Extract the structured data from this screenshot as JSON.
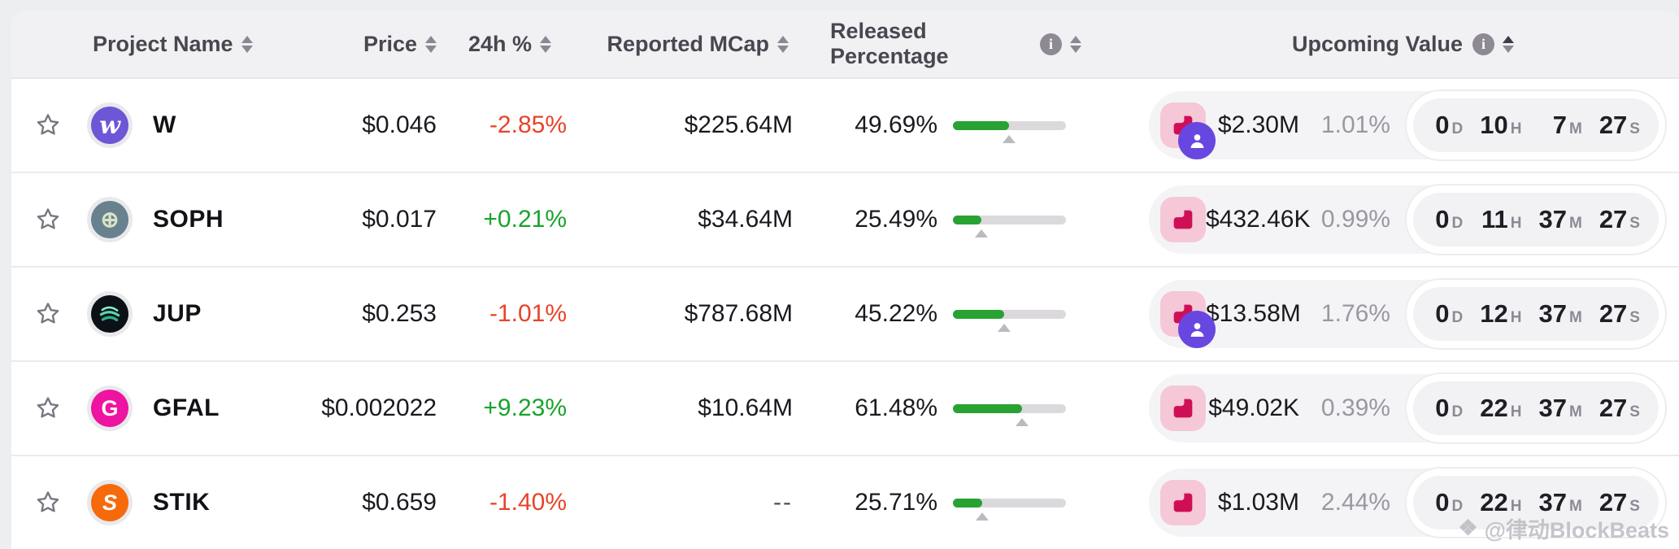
{
  "table": {
    "columns": {
      "project": "Project Name",
      "price": "Price",
      "change24h": "24h %",
      "mcap": "Reported MCap",
      "released": "Released Percentage",
      "upcoming": "Upcoming Value"
    },
    "sort": {
      "active_column": "upcoming",
      "direction": "asc"
    }
  },
  "units": {
    "days": "D",
    "hours": "H",
    "minutes": "M",
    "seconds": "S"
  },
  "colors": {
    "positive": "#18a42c",
    "negative": "#e8432a",
    "progress_fill": "#28a233",
    "cliff_icon": "#ce0f56",
    "cliff_icon_bg": "#f5c7d7",
    "private_icon_bg": "#6847e0"
  },
  "rows": [
    {
      "ticker": "W",
      "logo": {
        "bg": "#6e56d6",
        "fg": "#ffffff",
        "glyph": "w",
        "style": "serif-italic"
      },
      "price": "$0.046",
      "change_24h": "-2.85%",
      "trend": "down",
      "reported_mcap": "$225.64M",
      "released_pct_label": "49.69%",
      "released_pct": 49.69,
      "unlock_types": [
        "cliff",
        "private"
      ],
      "upcoming_value": "$2.30M",
      "upcoming_pct": "1.01%",
      "countdown": {
        "d": "0",
        "h": "10",
        "m": "7",
        "s": "27"
      }
    },
    {
      "ticker": "SOPH",
      "logo": {
        "bg": "#69808f",
        "fg": "#d7e5c6",
        "glyph": "⊕",
        "style": ""
      },
      "price": "$0.017",
      "change_24h": "+0.21%",
      "trend": "up",
      "reported_mcap": "$34.64M",
      "released_pct_label": "25.49%",
      "released_pct": 25.49,
      "unlock_types": [
        "cliff"
      ],
      "upcoming_value": "$432.46K",
      "upcoming_pct": "0.99%",
      "countdown": {
        "d": "0",
        "h": "11",
        "m": "37",
        "s": "27"
      }
    },
    {
      "ticker": "JUP",
      "logo": {
        "bg": "#0c1118",
        "fg": "#6fe3c2",
        "glyph": "",
        "style": "jupiter-arcs"
      },
      "price": "$0.253",
      "change_24h": "-1.01%",
      "trend": "down",
      "reported_mcap": "$787.68M",
      "released_pct_label": "45.22%",
      "released_pct": 45.22,
      "unlock_types": [
        "cliff",
        "private"
      ],
      "upcoming_value": "$13.58M",
      "upcoming_pct": "1.76%",
      "countdown": {
        "d": "0",
        "h": "12",
        "m": "37",
        "s": "27"
      }
    },
    {
      "ticker": "GFAL",
      "logo": {
        "bg": "#ee13a0",
        "fg": "#ffffff",
        "glyph": "G",
        "style": ""
      },
      "price": "$0.002022",
      "change_24h": "+9.23%",
      "trend": "up",
      "reported_mcap": "$10.64M",
      "released_pct_label": "61.48%",
      "released_pct": 61.48,
      "unlock_types": [
        "cliff"
      ],
      "upcoming_value": "$49.02K",
      "upcoming_pct": "0.39%",
      "countdown": {
        "d": "0",
        "h": "22",
        "m": "37",
        "s": "27"
      }
    },
    {
      "ticker": "STIK",
      "logo": {
        "bg": "#f66a0a",
        "fg": "#ffffff",
        "glyph": "S",
        "style": "italic"
      },
      "price": "$0.659",
      "change_24h": "-1.40%",
      "trend": "down",
      "reported_mcap": "--",
      "released_pct_label": "25.71%",
      "released_pct": 25.71,
      "unlock_types": [
        "cliff"
      ],
      "upcoming_value": "$1.03M",
      "upcoming_pct": "2.44%",
      "countdown": {
        "d": "0",
        "h": "22",
        "m": "37",
        "s": "27"
      }
    }
  ],
  "watermark": {
    "icon": "❖",
    "text": "@律动BlockBeats"
  }
}
